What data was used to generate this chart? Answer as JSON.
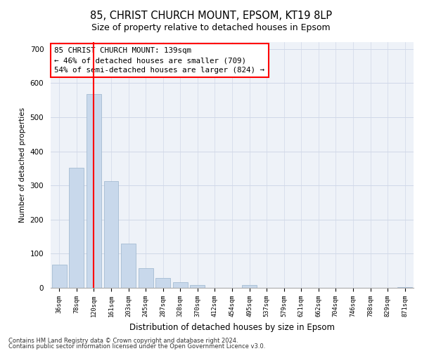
{
  "title1": "85, CHRIST CHURCH MOUNT, EPSOM, KT19 8LP",
  "title2": "Size of property relative to detached houses in Epsom",
  "xlabel": "Distribution of detached houses by size in Epsom",
  "ylabel": "Number of detached properties",
  "bar_color": "#c8d8eb",
  "bar_edge_color": "#9ab4cc",
  "vline_color": "red",
  "vline_x_index": 2,
  "annotation_text": "85 CHRIST CHURCH MOUNT: 139sqm\n← 46% of detached houses are smaller (709)\n54% of semi-detached houses are larger (824) →",
  "annotation_box_color": "white",
  "annotation_box_edge_color": "red",
  "bins": [
    "36sqm",
    "78sqm",
    "120sqm",
    "161sqm",
    "203sqm",
    "245sqm",
    "287sqm",
    "328sqm",
    "370sqm",
    "412sqm",
    "454sqm",
    "495sqm",
    "537sqm",
    "579sqm",
    "621sqm",
    "662sqm",
    "704sqm",
    "746sqm",
    "788sqm",
    "829sqm",
    "871sqm"
  ],
  "values": [
    68,
    352,
    567,
    312,
    130,
    57,
    28,
    17,
    8,
    0,
    0,
    9,
    0,
    0,
    0,
    0,
    0,
    0,
    0,
    0,
    3
  ],
  "ylim": [
    0,
    720
  ],
  "yticks": [
    0,
    100,
    200,
    300,
    400,
    500,
    600,
    700
  ],
  "grid_color": "#d0d8e8",
  "footer1": "Contains HM Land Registry data © Crown copyright and database right 2024.",
  "footer2": "Contains public sector information licensed under the Open Government Licence v3.0.",
  "background_color": "#eef2f8"
}
